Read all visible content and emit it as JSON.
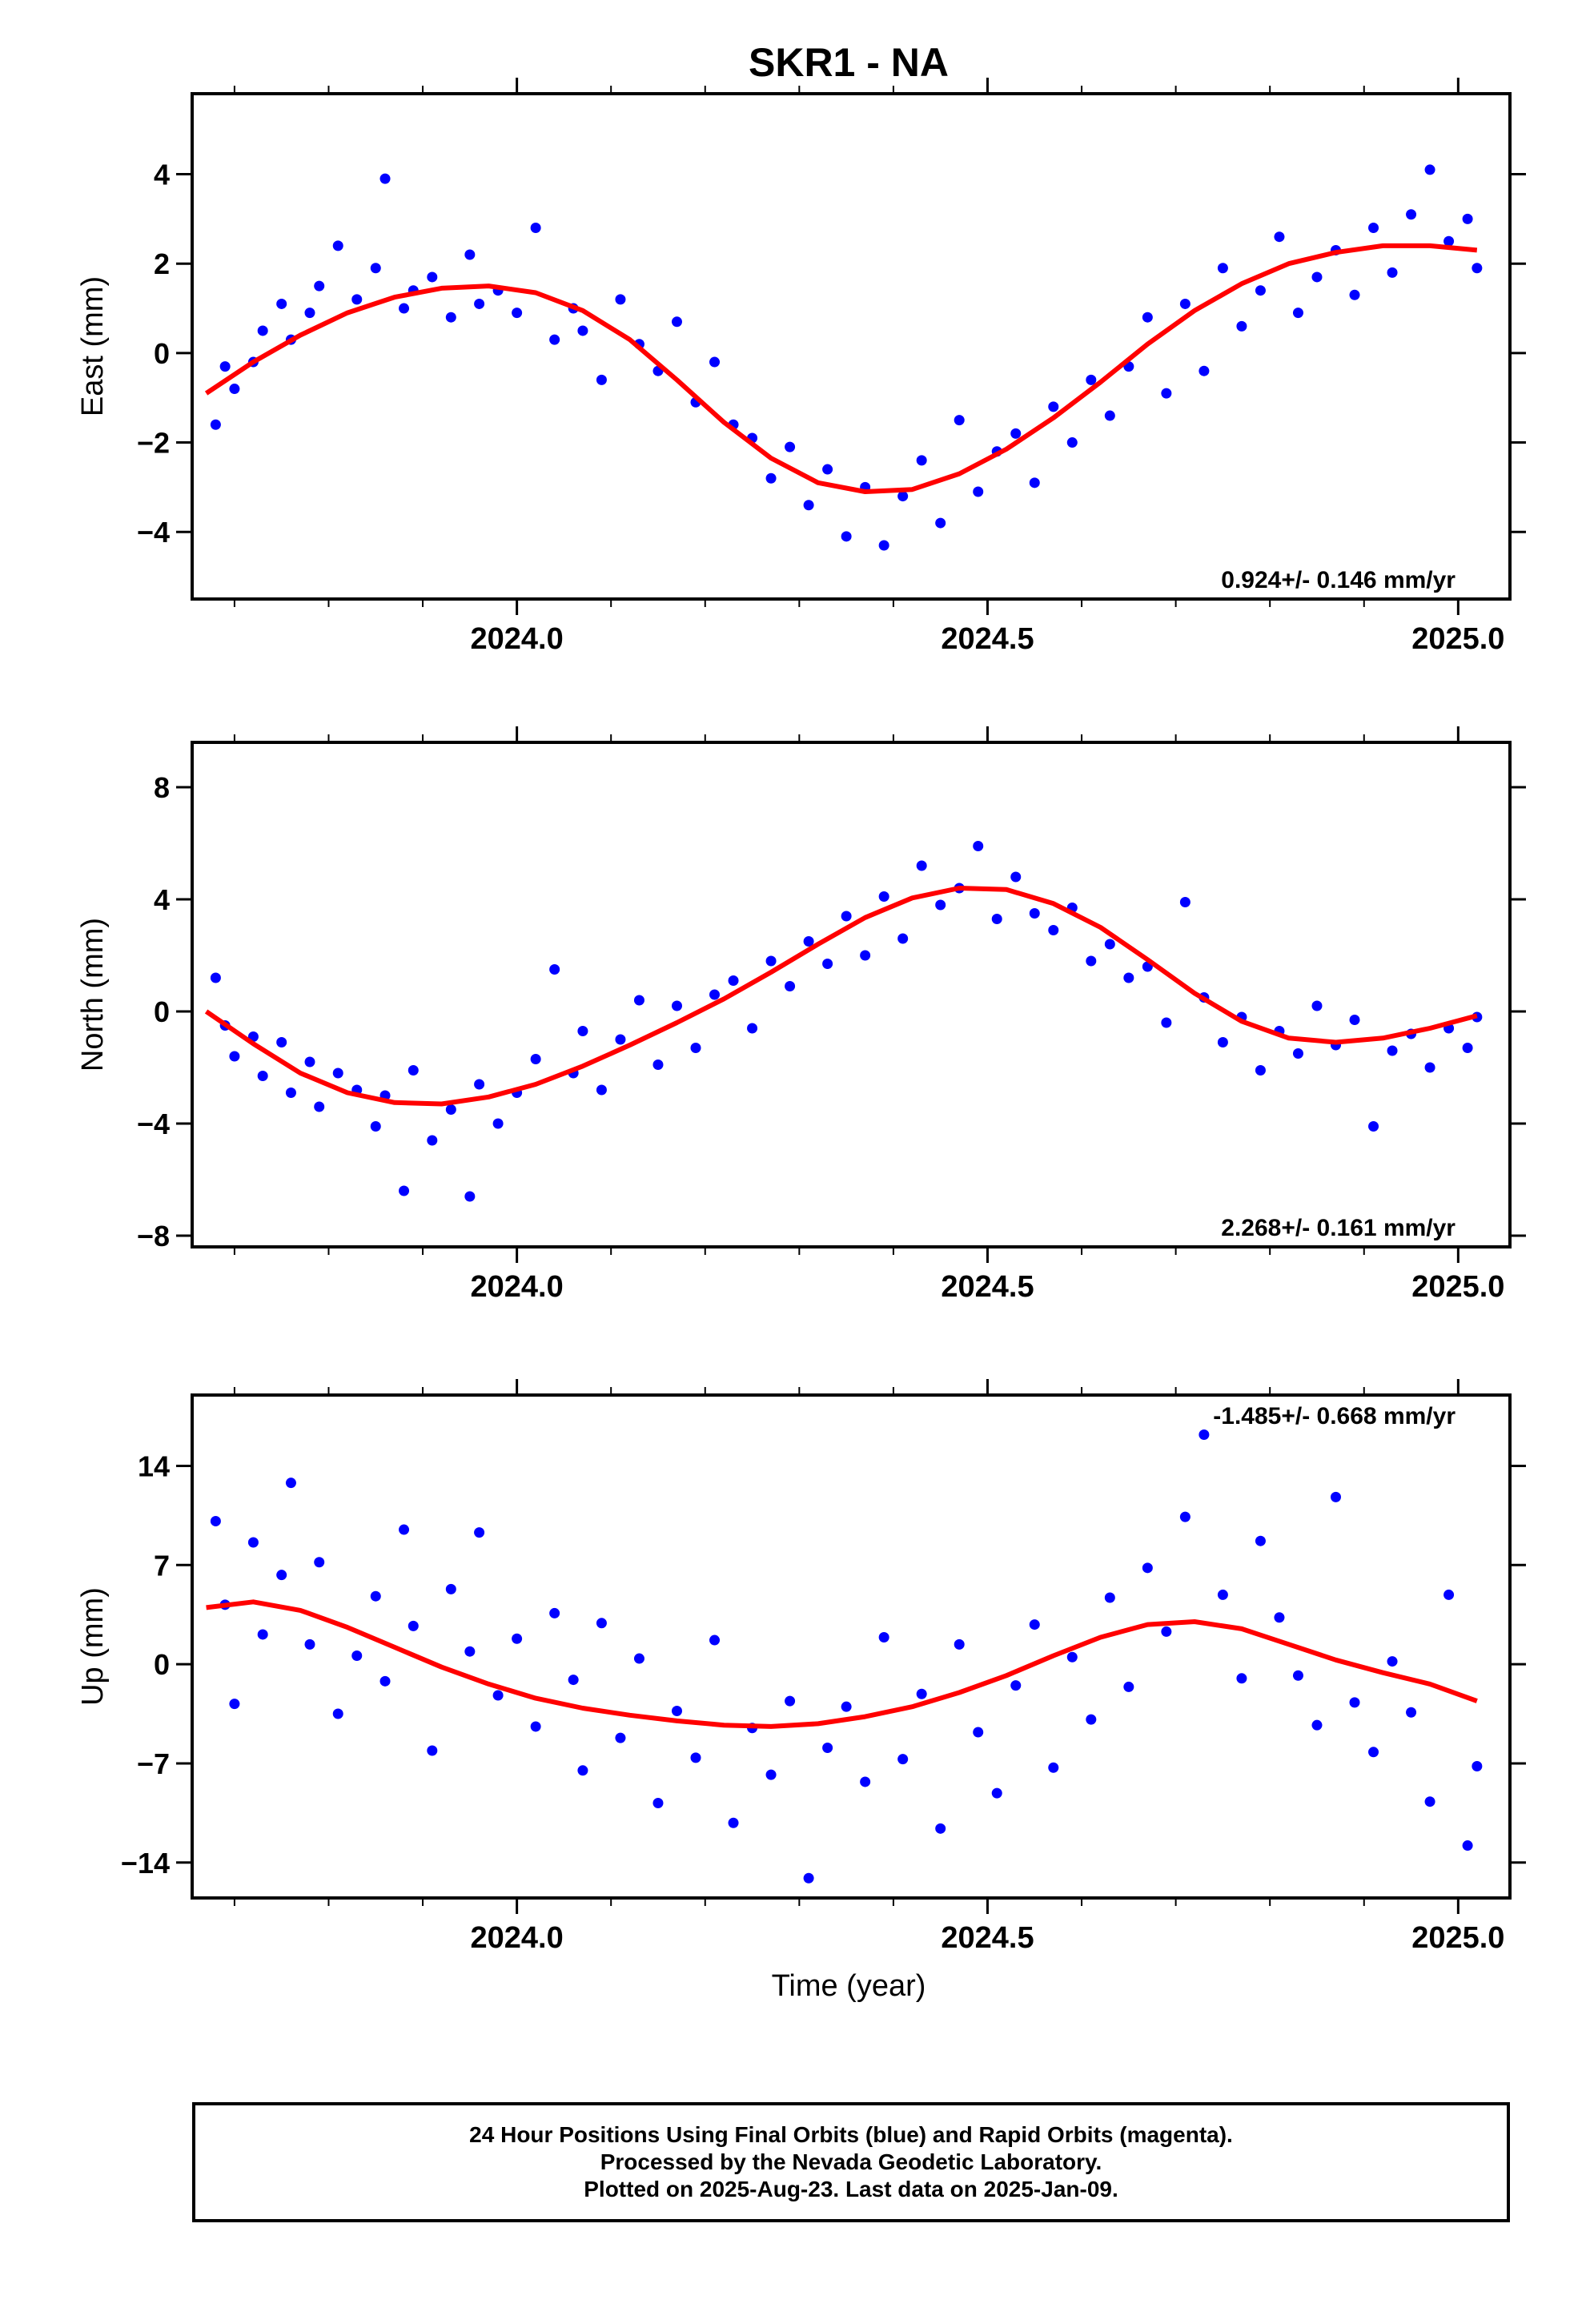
{
  "title": "SKR1 - NA",
  "xlabel": "Time (year)",
  "colors": {
    "final_orbits": "#0000ff",
    "model_fit": "#ff0000",
    "axes": "#000000"
  },
  "caption": [
    "24 Hour Positions Using Final Orbits (blue) and Rapid Orbits (magenta).",
    "Processed by the Nevada Geodetic Laboratory.",
    "Plotted on 2025-Aug-23. Last data on 2025-Jan-09."
  ],
  "chart_data": [
    {
      "type": "scatter",
      "ylabel": "East (mm)",
      "annotation": "0.924+/- 0.146 mm/yr",
      "annotation_position": "bottom-right",
      "xlim": [
        2023.655,
        2025.055
      ],
      "ylim": [
        -5.5,
        5.8
      ],
      "x_ticks": [
        2024.0,
        2024.5,
        2025.0
      ],
      "x_tick_labels": [
        "2024.0",
        "2024.5",
        "2025.0"
      ],
      "x_minor_tick_step": 0.1,
      "y_ticks": [
        -4,
        -2,
        0,
        2,
        4
      ],
      "y_tick_labels": [
        "−4",
        "−2",
        "0",
        "2",
        "4"
      ],
      "grid": false,
      "series": [
        {
          "role": "daily positions (final orbits)",
          "marker": "dot",
          "color": "#0000ff",
          "x": [
            2023.68,
            2023.69,
            2023.7,
            2023.72,
            2023.73,
            2023.75,
            2023.76,
            2023.78,
            2023.79,
            2023.81,
            2023.83,
            2023.85,
            2023.86,
            2023.88,
            2023.89,
            2023.91,
            2023.93,
            2023.95,
            2023.96,
            2023.98,
            2024.0,
            2024.02,
            2024.04,
            2024.06,
            2024.07,
            2024.09,
            2024.11,
            2024.13,
            2024.15,
            2024.17,
            2024.19,
            2024.21,
            2024.23,
            2024.25,
            2024.27,
            2024.29,
            2024.31,
            2024.33,
            2024.35,
            2024.37,
            2024.39,
            2024.41,
            2024.43,
            2024.45,
            2024.47,
            2024.49,
            2024.51,
            2024.53,
            2024.55,
            2024.57,
            2024.59,
            2024.61,
            2024.63,
            2024.65,
            2024.67,
            2024.69,
            2024.71,
            2024.73,
            2024.75,
            2024.77,
            2024.79,
            2024.81,
            2024.83,
            2024.85,
            2024.87,
            2024.89,
            2024.91,
            2024.93,
            2024.95,
            2024.97,
            2024.99,
            2025.01,
            2025.02
          ],
          "y": [
            -1.6,
            -0.3,
            -0.8,
            -0.2,
            0.5,
            1.1,
            0.3,
            0.9,
            1.5,
            2.4,
            1.2,
            1.9,
            3.9,
            1.0,
            1.4,
            1.7,
            0.8,
            2.2,
            1.1,
            1.4,
            0.9,
            2.8,
            0.3,
            1.0,
            0.5,
            -0.6,
            1.2,
            0.2,
            -0.4,
            0.7,
            -1.1,
            -0.2,
            -1.6,
            -1.9,
            -2.8,
            -2.1,
            -3.4,
            -2.6,
            -4.1,
            -3.0,
            -4.3,
            -3.2,
            -2.4,
            -3.8,
            -1.5,
            -3.1,
            -2.2,
            -1.8,
            -2.9,
            -1.2,
            -2.0,
            -0.6,
            -1.4,
            -0.3,
            0.8,
            -0.9,
            1.1,
            -0.4,
            1.9,
            0.6,
            1.4,
            2.6,
            0.9,
            1.7,
            2.3,
            1.3,
            2.8,
            1.8,
            3.1,
            4.1,
            2.5,
            3.0,
            1.9
          ]
        },
        {
          "role": "model fit",
          "color": "#ff0000",
          "x": [
            2023.67,
            2023.72,
            2023.77,
            2023.82,
            2023.87,
            2023.92,
            2023.97,
            2024.02,
            2024.07,
            2024.12,
            2024.17,
            2024.22,
            2024.27,
            2024.32,
            2024.37,
            2024.42,
            2024.47,
            2024.52,
            2024.57,
            2024.62,
            2024.67,
            2024.72,
            2024.77,
            2024.82,
            2024.87,
            2024.92,
            2024.97,
            2025.02
          ],
          "y": [
            -0.9,
            -0.2,
            0.4,
            0.9,
            1.25,
            1.45,
            1.5,
            1.35,
            0.95,
            0.3,
            -0.6,
            -1.55,
            -2.35,
            -2.9,
            -3.1,
            -3.05,
            -2.7,
            -2.15,
            -1.45,
            -0.65,
            0.2,
            0.95,
            1.55,
            2.0,
            2.25,
            2.4,
            2.4,
            2.3
          ]
        }
      ]
    },
    {
      "type": "scatter",
      "ylabel": "North (mm)",
      "annotation": "2.268+/- 0.161 mm/yr",
      "annotation_position": "bottom-right",
      "xlim": [
        2023.655,
        2025.055
      ],
      "ylim": [
        -8.4,
        9.6
      ],
      "x_ticks": [
        2024.0,
        2024.5,
        2025.0
      ],
      "x_tick_labels": [
        "2024.0",
        "2024.5",
        "2025.0"
      ],
      "x_minor_tick_step": 0.1,
      "y_ticks": [
        -8,
        -4,
        0,
        4,
        8
      ],
      "y_tick_labels": [
        "−8",
        "−4",
        "0",
        "4",
        "8"
      ],
      "grid": false,
      "series": [
        {
          "role": "daily positions (final orbits)",
          "marker": "dot",
          "color": "#0000ff",
          "x": [
            2023.68,
            2023.69,
            2023.7,
            2023.72,
            2023.73,
            2023.75,
            2023.76,
            2023.78,
            2023.79,
            2023.81,
            2023.83,
            2023.85,
            2023.86,
            2023.88,
            2023.89,
            2023.91,
            2023.93,
            2023.95,
            2023.96,
            2023.98,
            2024.0,
            2024.02,
            2024.04,
            2024.06,
            2024.07,
            2024.09,
            2024.11,
            2024.13,
            2024.15,
            2024.17,
            2024.19,
            2024.21,
            2024.23,
            2024.25,
            2024.27,
            2024.29,
            2024.31,
            2024.33,
            2024.35,
            2024.37,
            2024.39,
            2024.41,
            2024.43,
            2024.45,
            2024.47,
            2024.49,
            2024.51,
            2024.53,
            2024.55,
            2024.57,
            2024.59,
            2024.61,
            2024.63,
            2024.65,
            2024.67,
            2024.69,
            2024.71,
            2024.73,
            2024.75,
            2024.77,
            2024.79,
            2024.81,
            2024.83,
            2024.85,
            2024.87,
            2024.89,
            2024.91,
            2024.93,
            2024.95,
            2024.97,
            2024.99,
            2025.01,
            2025.02
          ],
          "y": [
            1.2,
            -0.5,
            -1.6,
            -0.9,
            -2.3,
            -1.1,
            -2.9,
            -1.8,
            -3.4,
            -2.2,
            -2.8,
            -4.1,
            -3.0,
            -6.4,
            -2.1,
            -4.6,
            -3.5,
            -6.6,
            -2.6,
            -4.0,
            -2.9,
            -1.7,
            1.5,
            -2.2,
            -0.7,
            -2.8,
            -1.0,
            0.4,
            -1.9,
            0.2,
            -1.3,
            0.6,
            1.1,
            -0.6,
            1.8,
            0.9,
            2.5,
            1.7,
            3.4,
            2.0,
            4.1,
            2.6,
            5.2,
            3.8,
            4.4,
            5.9,
            3.3,
            4.8,
            3.5,
            2.9,
            3.7,
            1.8,
            2.4,
            1.2,
            1.6,
            -0.4,
            3.9,
            0.5,
            -1.1,
            -0.2,
            -2.1,
            -0.7,
            -1.5,
            0.2,
            -1.2,
            -0.3,
            -4.1,
            -1.4,
            -0.8,
            -2.0,
            -0.6,
            -1.3,
            -0.2
          ]
        },
        {
          "role": "model fit",
          "color": "#ff0000",
          "x": [
            2023.67,
            2023.72,
            2023.77,
            2023.82,
            2023.87,
            2023.92,
            2023.97,
            2024.02,
            2024.07,
            2024.12,
            2024.17,
            2024.22,
            2024.27,
            2024.32,
            2024.37,
            2024.42,
            2024.47,
            2024.52,
            2024.57,
            2024.62,
            2024.67,
            2024.72,
            2024.77,
            2024.82,
            2024.87,
            2024.92,
            2024.97,
            2025.02
          ],
          "y": [
            0.0,
            -1.15,
            -2.2,
            -2.9,
            -3.25,
            -3.3,
            -3.05,
            -2.6,
            -1.95,
            -1.2,
            -0.4,
            0.45,
            1.4,
            2.4,
            3.35,
            4.05,
            4.4,
            4.35,
            3.85,
            3.0,
            1.85,
            0.65,
            -0.35,
            -0.95,
            -1.1,
            -0.95,
            -0.6,
            -0.15
          ]
        }
      ]
    },
    {
      "type": "scatter",
      "ylabel": "Up (mm)",
      "xlabel": "Time (year)",
      "annotation": "-1.485+/- 0.668 mm/yr",
      "annotation_position": "top-right",
      "xlim": [
        2023.655,
        2025.055
      ],
      "ylim": [
        -16.5,
        19.0
      ],
      "x_ticks": [
        2024.0,
        2024.5,
        2025.0
      ],
      "x_tick_labels": [
        "2024.0",
        "2024.5",
        "2025.0"
      ],
      "x_minor_tick_step": 0.1,
      "y_ticks": [
        -14,
        -7,
        0,
        7,
        14
      ],
      "y_tick_labels": [
        "−14",
        "−7",
        "0",
        "7",
        "14"
      ],
      "grid": false,
      "series": [
        {
          "role": "daily positions (final orbits)",
          "marker": "dot",
          "color": "#0000ff",
          "x": [
            2023.68,
            2023.69,
            2023.7,
            2023.72,
            2023.73,
            2023.75,
            2023.76,
            2023.78,
            2023.79,
            2023.81,
            2023.83,
            2023.85,
            2023.86,
            2023.88,
            2023.89,
            2023.91,
            2023.93,
            2023.95,
            2023.96,
            2023.98,
            2024.0,
            2024.02,
            2024.04,
            2024.06,
            2024.07,
            2024.09,
            2024.11,
            2024.13,
            2024.15,
            2024.17,
            2024.19,
            2024.21,
            2024.23,
            2024.25,
            2024.27,
            2024.29,
            2024.31,
            2024.33,
            2024.35,
            2024.37,
            2024.39,
            2024.41,
            2024.43,
            2024.45,
            2024.47,
            2024.49,
            2024.51,
            2024.53,
            2024.55,
            2024.57,
            2024.59,
            2024.61,
            2024.63,
            2024.65,
            2024.67,
            2024.69,
            2024.71,
            2024.73,
            2024.75,
            2024.77,
            2024.79,
            2024.81,
            2024.83,
            2024.85,
            2024.87,
            2024.89,
            2024.91,
            2024.93,
            2024.95,
            2024.97,
            2024.99,
            2025.01,
            2025.02
          ],
          "y": [
            10.1,
            4.2,
            -2.8,
            8.6,
            2.1,
            6.3,
            12.8,
            1.4,
            7.2,
            -3.5,
            0.6,
            4.8,
            -1.2,
            9.5,
            2.7,
            -6.1,
            5.3,
            0.9,
            9.3,
            -2.2,
            1.8,
            -4.4,
            3.6,
            -1.1,
            -7.5,
            2.9,
            -5.2,
            0.4,
            -9.8,
            -3.3,
            -6.6,
            1.7,
            -11.2,
            -4.5,
            -7.8,
            -2.6,
            -15.1,
            -5.9,
            -3.0,
            -8.3,
            1.9,
            -6.7,
            -2.1,
            -11.6,
            1.4,
            -4.8,
            -9.1,
            -1.5,
            2.8,
            -7.3,
            0.5,
            -3.9,
            4.7,
            -1.6,
            6.8,
            2.3,
            10.4,
            16.2,
            4.9,
            -1.0,
            8.7,
            3.3,
            -0.8,
            -4.3,
            11.8,
            -2.7,
            -6.2,
            0.2,
            -3.4,
            -9.7,
            4.9,
            -12.8,
            -7.2
          ]
        },
        {
          "role": "model fit",
          "color": "#ff0000",
          "x": [
            2023.67,
            2023.72,
            2023.77,
            2023.82,
            2023.87,
            2023.92,
            2023.97,
            2024.02,
            2024.07,
            2024.12,
            2024.17,
            2024.22,
            2024.27,
            2024.32,
            2024.37,
            2024.42,
            2024.47,
            2024.52,
            2024.57,
            2024.62,
            2024.67,
            2024.72,
            2024.77,
            2024.82,
            2024.87,
            2024.92,
            2024.97,
            2025.02
          ],
          "y": [
            4.0,
            4.4,
            3.8,
            2.6,
            1.2,
            -0.2,
            -1.4,
            -2.4,
            -3.1,
            -3.6,
            -4.0,
            -4.3,
            -4.4,
            -4.2,
            -3.7,
            -3.0,
            -2.0,
            -0.8,
            0.6,
            1.9,
            2.8,
            3.0,
            2.5,
            1.4,
            0.3,
            -0.6,
            -1.4,
            -2.6
          ]
        }
      ]
    }
  ]
}
